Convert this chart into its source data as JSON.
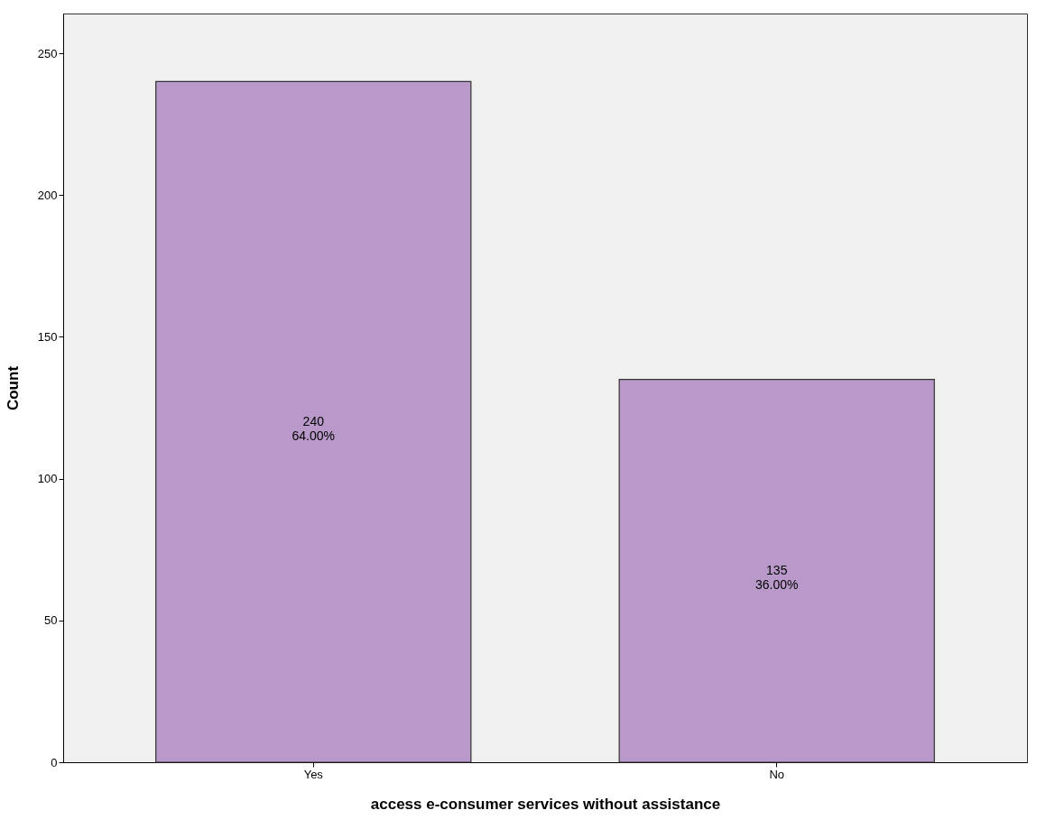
{
  "chart_data": {
    "type": "bar",
    "xlabel": "access e-consumer services without assistance",
    "ylabel": "Count",
    "categories": [
      "Yes",
      "No"
    ],
    "series": [
      {
        "color": "#b899c9",
        "values": [
          240,
          135
        ]
      }
    ],
    "value_labels": [
      "240\n64.00%",
      "135\n36.00%"
    ],
    "ylim": [
      0,
      264
    ],
    "yticks": [
      0,
      50,
      100,
      150,
      200,
      250
    ],
    "grid": false
  }
}
